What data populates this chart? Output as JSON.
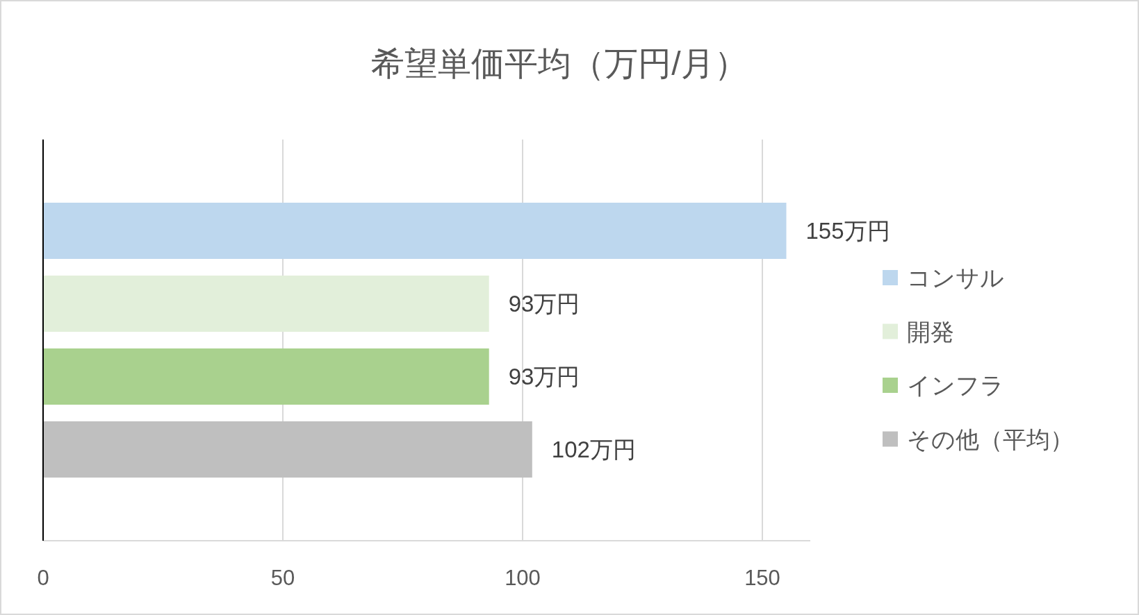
{
  "chart_data": {
    "type": "bar",
    "orientation": "horizontal",
    "title": "希望単価平均（万円/月）",
    "categories": [
      null
    ],
    "series": [
      {
        "name": "コンサル",
        "color": "#bdd7ee",
        "values": [
          155
        ],
        "value_labels": [
          "155万円"
        ]
      },
      {
        "name": "開発",
        "color": "#e2efda",
        "values": [
          93
        ],
        "value_labels": [
          "93万円"
        ]
      },
      {
        "name": "インフラ",
        "color": "#a9d18e",
        "values": [
          93
        ],
        "value_labels": [
          "93万円"
        ]
      },
      {
        "name": "その他（平均）",
        "color": "#bfbfbf",
        "values": [
          102
        ],
        "value_labels": [
          "102万円"
        ]
      }
    ],
    "xlim": [
      0,
      160
    ],
    "xticks": [
      0,
      50,
      100,
      150
    ],
    "grid": "x",
    "legend": "right"
  }
}
